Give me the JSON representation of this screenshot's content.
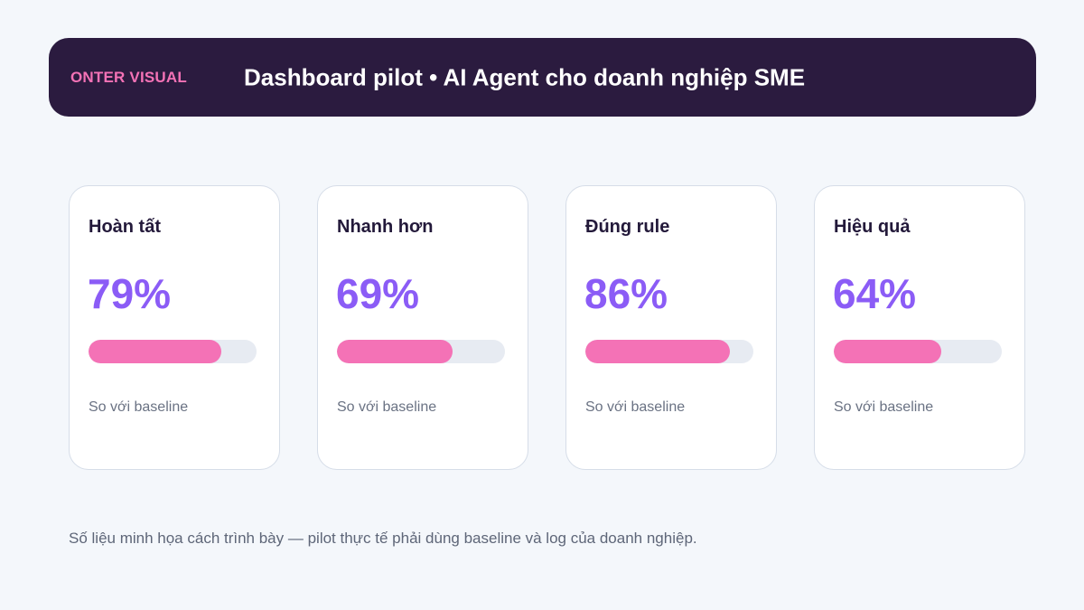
{
  "header": {
    "brand": "ONTER VISUAL",
    "title": "Dashboard pilot • AI Agent cho doanh nghiệp SME"
  },
  "cards": [
    {
      "label": "Hoàn tất",
      "value_text": "79%",
      "progress": 0.79,
      "sub": "So với baseline"
    },
    {
      "label": "Nhanh hơn",
      "value_text": "69%",
      "progress": 0.69,
      "sub": "So với baseline"
    },
    {
      "label": "Đúng rule",
      "value_text": "86%",
      "progress": 0.86,
      "sub": "So với baseline"
    },
    {
      "label": "Hiệu quả",
      "value_text": "64%",
      "progress": 0.64,
      "sub": "So với baseline"
    }
  ],
  "footnote": "Số liệu minh họa cách trình bày — pilot thực tế phải dùng baseline và log của doanh nghiệp.",
  "colors": {
    "header_bg": "#2b1b3f",
    "brand": "#f472b6",
    "value": "#8b5cf6",
    "bar_fill": "#f472b6",
    "bar_track": "#e7ebf2"
  }
}
